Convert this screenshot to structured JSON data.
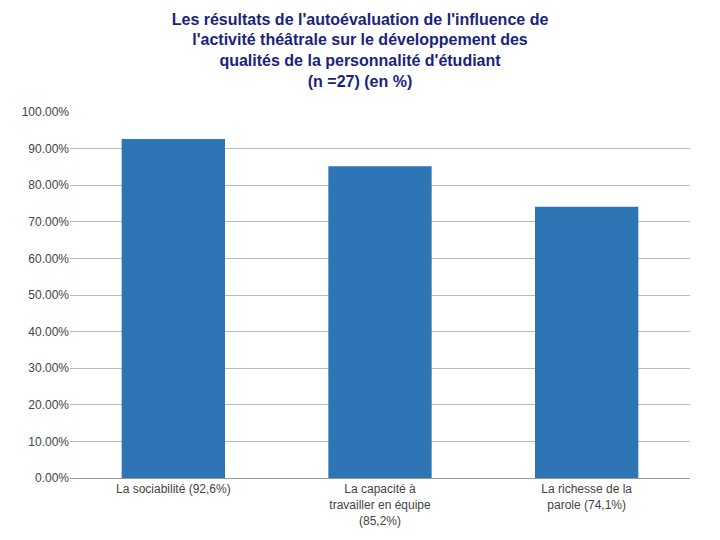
{
  "chart_data": {
    "type": "bar",
    "title": "Les résultats de l'autoévaluation de l'influence de\nl'activité théâtrale sur le développement des\nqualités de la personnalité d'étudiant\n(n =27) (en %)",
    "categories": [
      "La sociabilité (92,6%)",
      "La capacité à\ntravailler en équipe\n(85,2%)",
      "La richesse de la\nparole (74,1%)"
    ],
    "values": [
      92.6,
      85.2,
      74.1
    ],
    "color": "#2e75b6",
    "ylim": [
      0,
      100
    ],
    "yticks": [
      {
        "value": 0,
        "label": "0.00%"
      },
      {
        "value": 10,
        "label": "10.00%"
      },
      {
        "value": 20,
        "label": "20.00%"
      },
      {
        "value": 30,
        "label": "30.00%"
      },
      {
        "value": 40,
        "label": "40.00%"
      },
      {
        "value": 50,
        "label": "50.00%"
      },
      {
        "value": 60,
        "label": "60.00%"
      },
      {
        "value": 70,
        "label": "70.00%"
      },
      {
        "value": 80,
        "label": "80.00%"
      },
      {
        "value": 90,
        "label": "90.00%"
      },
      {
        "value": 100,
        "label": "100.00%"
      }
    ],
    "grid": true
  }
}
